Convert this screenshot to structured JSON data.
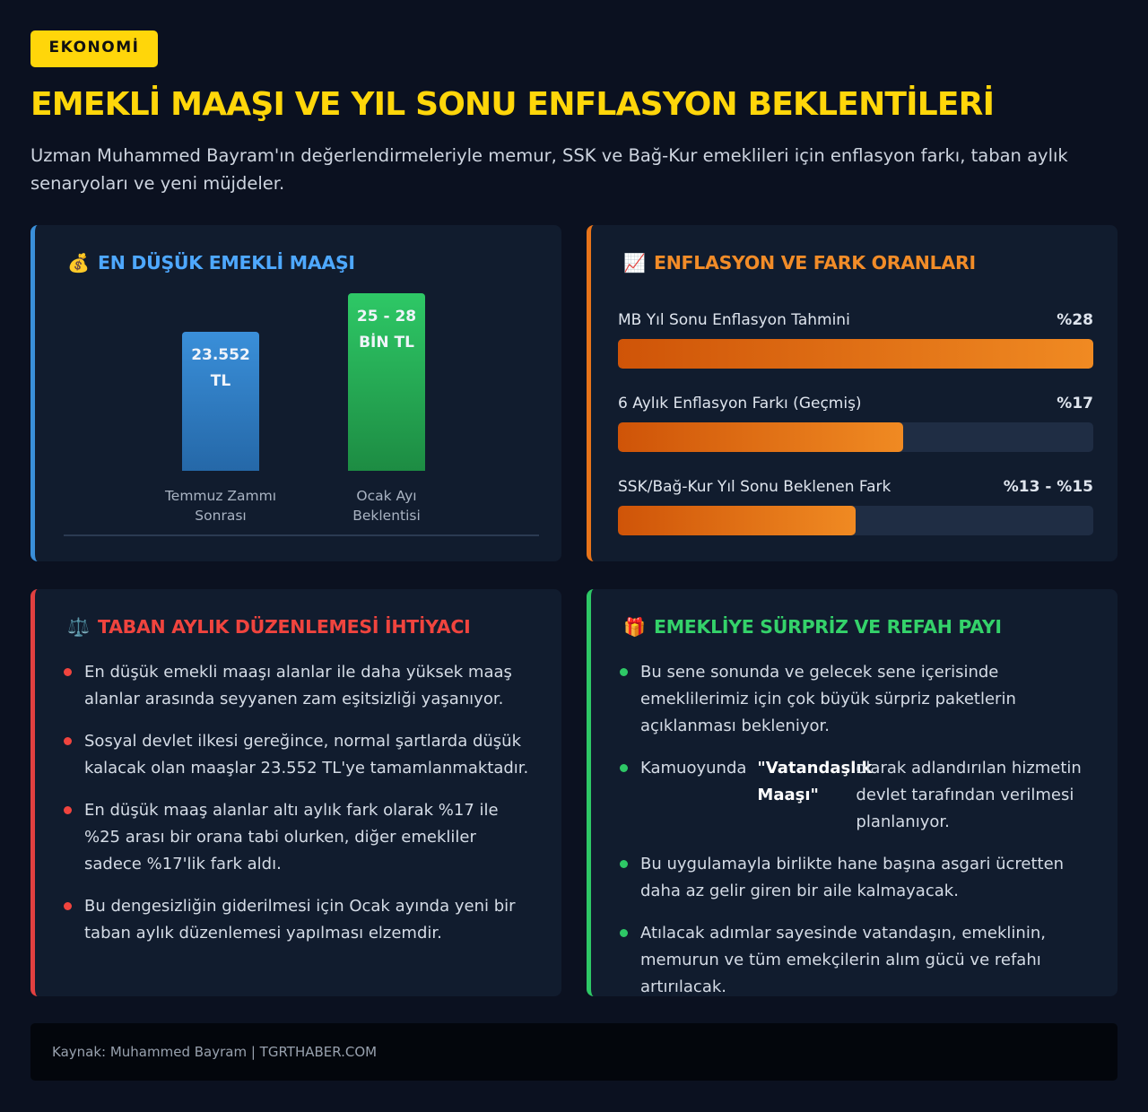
{
  "badge": "EKONOMİ",
  "headline": "EMEKLİ MAAŞI VE YIL SONU ENFLASYON BEKLENTİLERİ",
  "subtitle": "Uzman Muhammed Bayram'ın değerlendirmeleriyle memur, SSK ve Bağ-Kur emeklileri için enflasyon farkı, taban aylık senaryoları ve yeni müjdeler.",
  "colors": {
    "accent_yellow": "#ffd60a",
    "blue": "#3a8fd9",
    "orange": "#e8741a",
    "red": "#e24040",
    "green": "#2ec866",
    "background": "#0b1120",
    "card": "#111c2e"
  },
  "min_pension": {
    "icon": "money-bag-icon",
    "icon_glyph": "💰",
    "title": "EN DÜŞÜK EMEKLİ MAAŞI",
    "bars": [
      {
        "value_line1": "23.552",
        "value_line2": "TL",
        "category_line1": "Temmuz Zammı",
        "category_line2": "Sonrası",
        "color": "#2f7fc4",
        "value": 23552
      },
      {
        "value_line1": "25 - 28",
        "value_line2": "BİN TL",
        "category_line1": "Ocak Ayı",
        "category_line2": "Beklentisi",
        "color": "#22a84f",
        "value": 28000
      }
    ]
  },
  "inflation": {
    "icon": "chart-increasing-icon",
    "icon_glyph": "📈",
    "title": "ENFLASYON VE FARK ORANLARI",
    "metrics": [
      {
        "label": "MB Yıl Sonu Enflasyon Tahmini",
        "value": "%28",
        "fill_pct": 100
      },
      {
        "label": "6 Aylık Enflasyon Farkı (Geçmiş)",
        "value": "%17",
        "fill_pct": 60
      },
      {
        "label": "SSK/Bağ-Kur Yıl Sonu Beklenen Fark",
        "value": "%13 - %15",
        "fill_pct": 50
      }
    ]
  },
  "base_salary": {
    "icon": "balance-scale-icon",
    "icon_glyph": "⚖️",
    "title": "TABAN AYLIK DÜZENLEMESİ İHTİYACI",
    "items": [
      "En düşük emekli maaşı alanlar ile daha yüksek maaş alanlar arasında seyyanen zam eşitsizliği yaşanıyor.",
      "Sosyal devlet ilkesi gereğince, normal şartlarda düşük kalacak olan maaşlar 23.552 TL'ye tamamlanmaktadır.",
      "En düşük maaş alanlar altı aylık fark olarak %17 ile %25 arası bir orana tabi olurken, diğer emekliler sadece %17'lik fark aldı.",
      "Bu dengesizliğin giderilmesi için Ocak ayında yeni bir taban aylık düzenlemesi yapılması elzemdir."
    ]
  },
  "surprise": {
    "icon": "gift-icon",
    "icon_glyph": "🎁",
    "title": "EMEKLİYE SÜRPRİZ VE REFAH PAYI",
    "item1": "Bu sene sonunda ve gelecek sene içerisinde emeklilerimiz için çok büyük sürpriz paketlerin açıklanması bekleniyor.",
    "item2_pre": "Kamuoyunda",
    "item2_strong": "\"Vatandaşlık Maaşı\"",
    "item2_post": "olarak adlandırılan hizmetin devlet tarafından verilmesi planlanıyor.",
    "item3": "Bu uygulamayla birlikte hane başına asgari ücretten daha az gelir giren bir aile kalmayacak.",
    "item4": "Atılacak adımlar sayesinde vatandaşın, emeklinin, memurun ve tüm emekçilerin alım gücü ve refahı artırılacak."
  },
  "footer": "Kaynak: Muhammed Bayram | TGRTHABER.COM"
}
